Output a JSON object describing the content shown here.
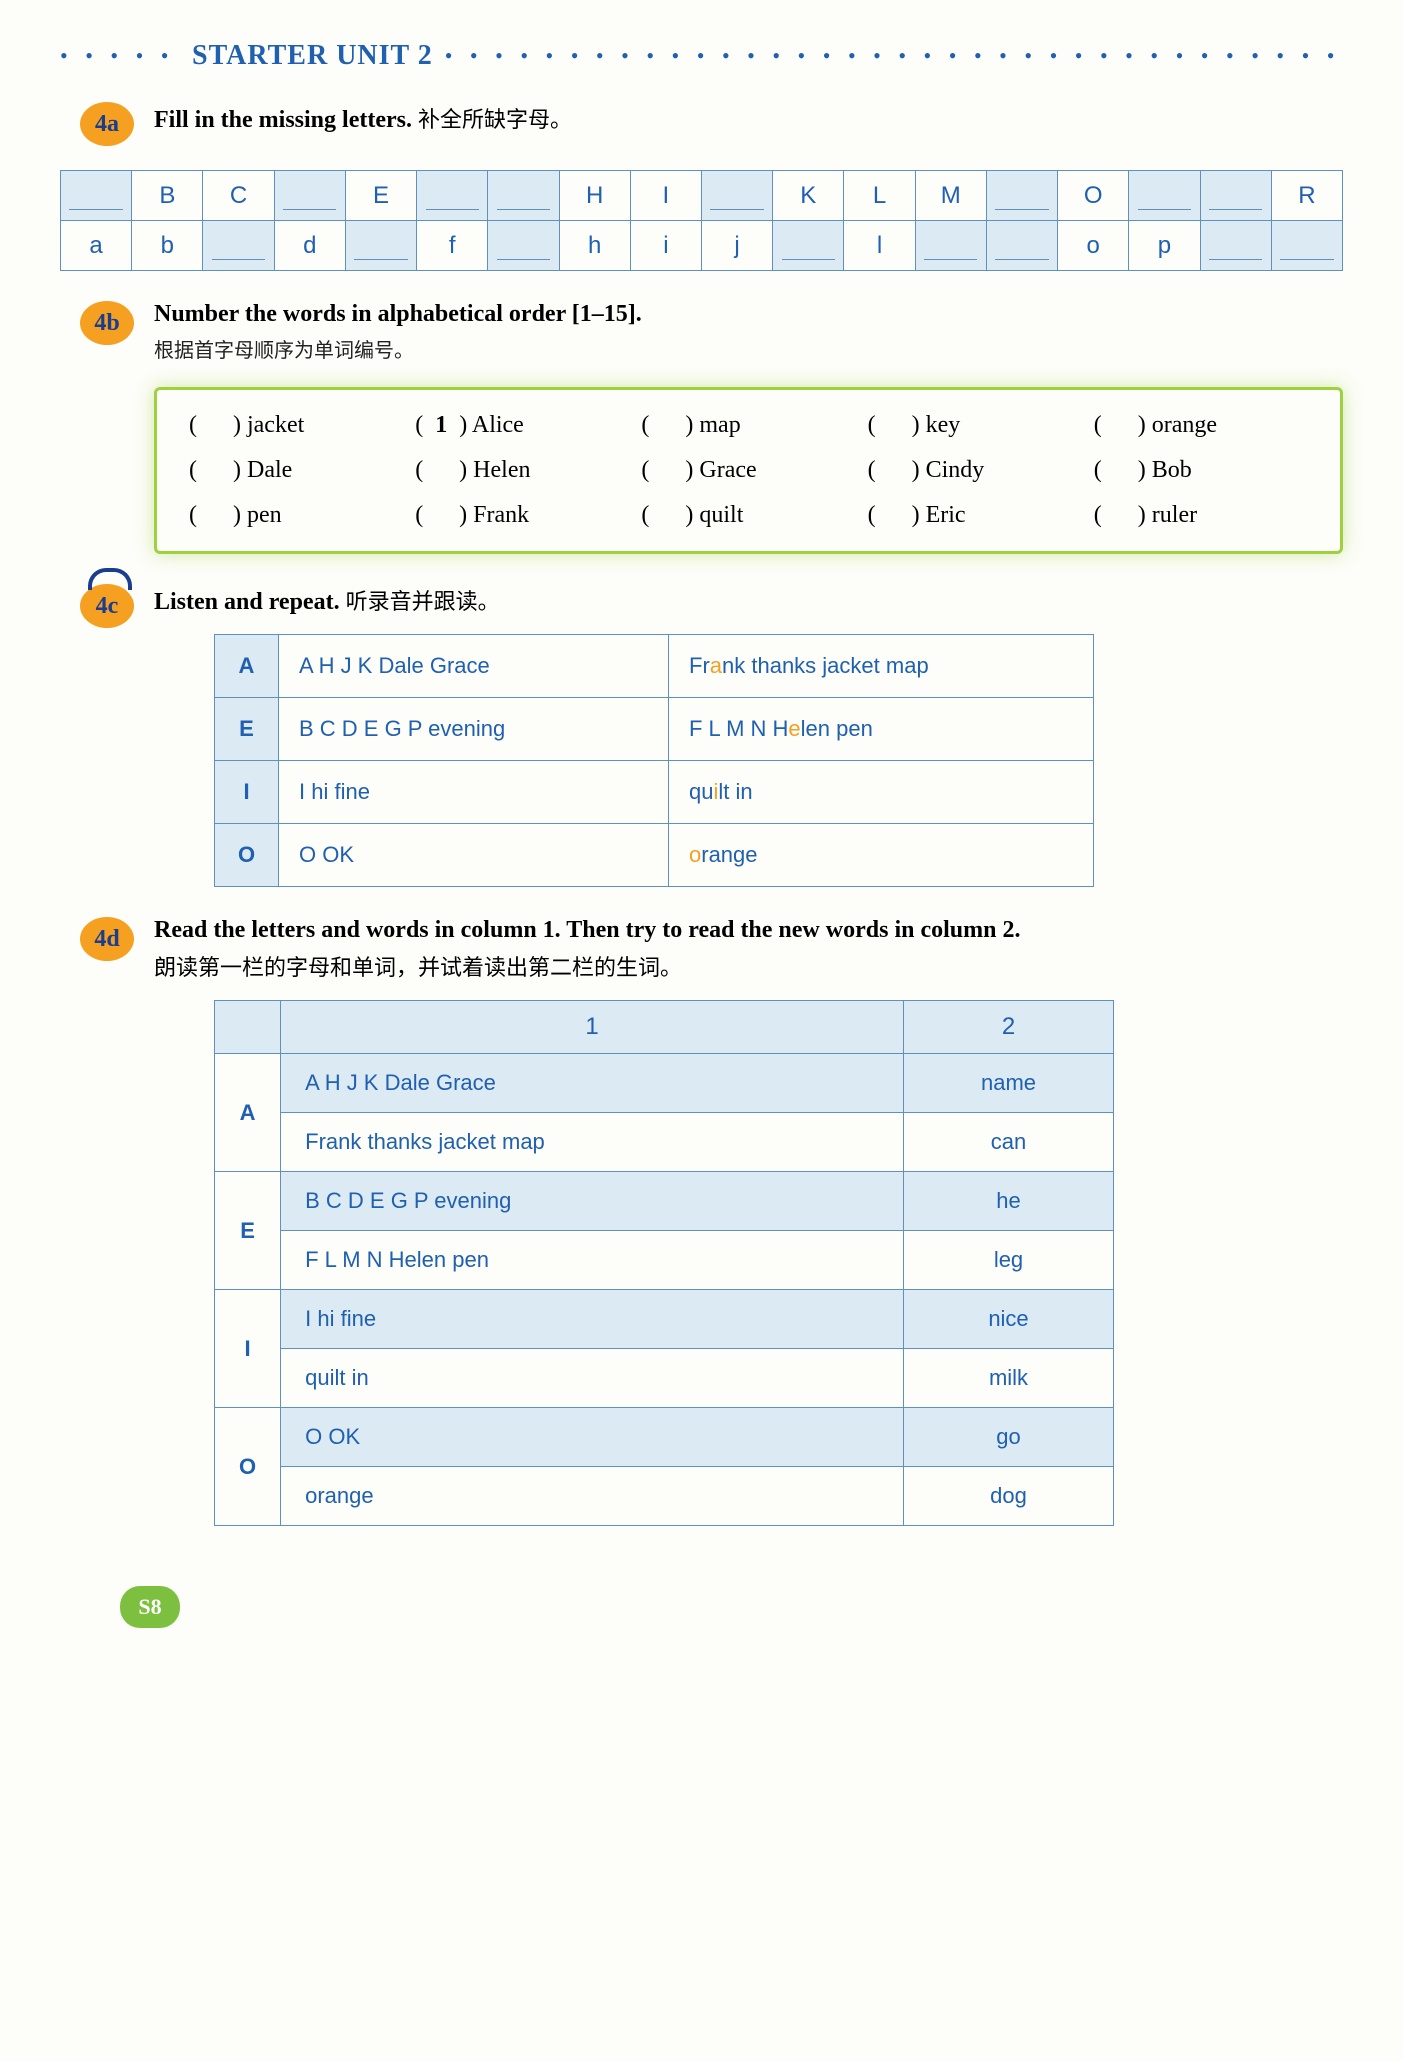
{
  "unit_title": "STARTER UNIT 2",
  "dots": "• • • • • • • • • • • • • • • • • • • • • • • • • • • • • • • • • • • •",
  "dots_left": "• • • • • • •",
  "s4a": {
    "badge": "4a",
    "instr": "Fill in the missing letters.",
    "cn": "补全所缺字母。",
    "row1": [
      "",
      "B",
      "C",
      "",
      "E",
      "",
      "",
      "H",
      "I",
      "",
      "K",
      "L",
      "M",
      "",
      "O",
      "",
      "",
      "R"
    ],
    "row2": [
      "a",
      "b",
      "",
      "d",
      "",
      "f",
      "",
      "h",
      "i",
      "j",
      "",
      "l",
      "",
      "",
      "o",
      "p",
      "",
      ""
    ]
  },
  "s4b": {
    "badge": "4b",
    "instr": "Number the words in alphabetical order [1–15].",
    "cn": "根据首字母顺序为单词编号。",
    "words": [
      {
        "n": "",
        "w": "jacket"
      },
      {
        "n": "1",
        "w": "Alice"
      },
      {
        "n": "",
        "w": "map"
      },
      {
        "n": "",
        "w": "key"
      },
      {
        "n": "",
        "w": "orange"
      },
      {
        "n": "",
        "w": "Dale"
      },
      {
        "n": "",
        "w": "Helen"
      },
      {
        "n": "",
        "w": "Grace"
      },
      {
        "n": "",
        "w": "Cindy"
      },
      {
        "n": "",
        "w": "Bob"
      },
      {
        "n": "",
        "w": "pen"
      },
      {
        "n": "",
        "w": "Frank"
      },
      {
        "n": "",
        "w": "quilt"
      },
      {
        "n": "",
        "w": "Eric"
      },
      {
        "n": "",
        "w": "ruler"
      }
    ]
  },
  "s4c": {
    "badge": "4c",
    "instr": "Listen and repeat.",
    "cn": "听录音并跟读。",
    "rows": [
      {
        "k": "A",
        "c1": "A H J K Dale Grace",
        "c2p": "Fr",
        "c2a": "a",
        "c2s": "nk thanks jacket map"
      },
      {
        "k": "E",
        "c1": "B C D E G P evening",
        "c2p": "F L M N H",
        "c2a": "e",
        "c2s": "len pen"
      },
      {
        "k": "I",
        "c1": "I hi fine",
        "c2p": "qu",
        "c2a": "i",
        "c2s": "lt in"
      },
      {
        "k": "O",
        "c1": "O OK",
        "c2p": "",
        "c2a": "o",
        "c2s": "range"
      }
    ]
  },
  "s4d": {
    "badge": "4d",
    "instr": "Read the letters and words in column 1. Then try to read the new words in column 2.",
    "cn": "朗读第一栏的字母和单词，并试着读出第二栏的生词。",
    "h1": "1",
    "h2": "2",
    "groups": [
      {
        "k": "A",
        "r": [
          {
            "c1": "A H J K Dale Grace",
            "c2": "name",
            "shade": true
          },
          {
            "c1": "Frank thanks jacket map",
            "c2": "can",
            "shade": false
          }
        ]
      },
      {
        "k": "E",
        "r": [
          {
            "c1": "B C D E G P evening",
            "c2": "he",
            "shade": true
          },
          {
            "c1": "F L M N Helen pen",
            "c2": "leg",
            "shade": false
          }
        ]
      },
      {
        "k": "I",
        "r": [
          {
            "c1": "I hi fine",
            "c2": "nice",
            "shade": true
          },
          {
            "c1": "quilt in",
            "c2": "milk",
            "shade": false
          }
        ]
      },
      {
        "k": "O",
        "r": [
          {
            "c1": "O OK",
            "c2": "go",
            "shade": true
          },
          {
            "c1": "orange",
            "c2": "dog",
            "shade": false
          }
        ]
      }
    ]
  },
  "page": "S8"
}
